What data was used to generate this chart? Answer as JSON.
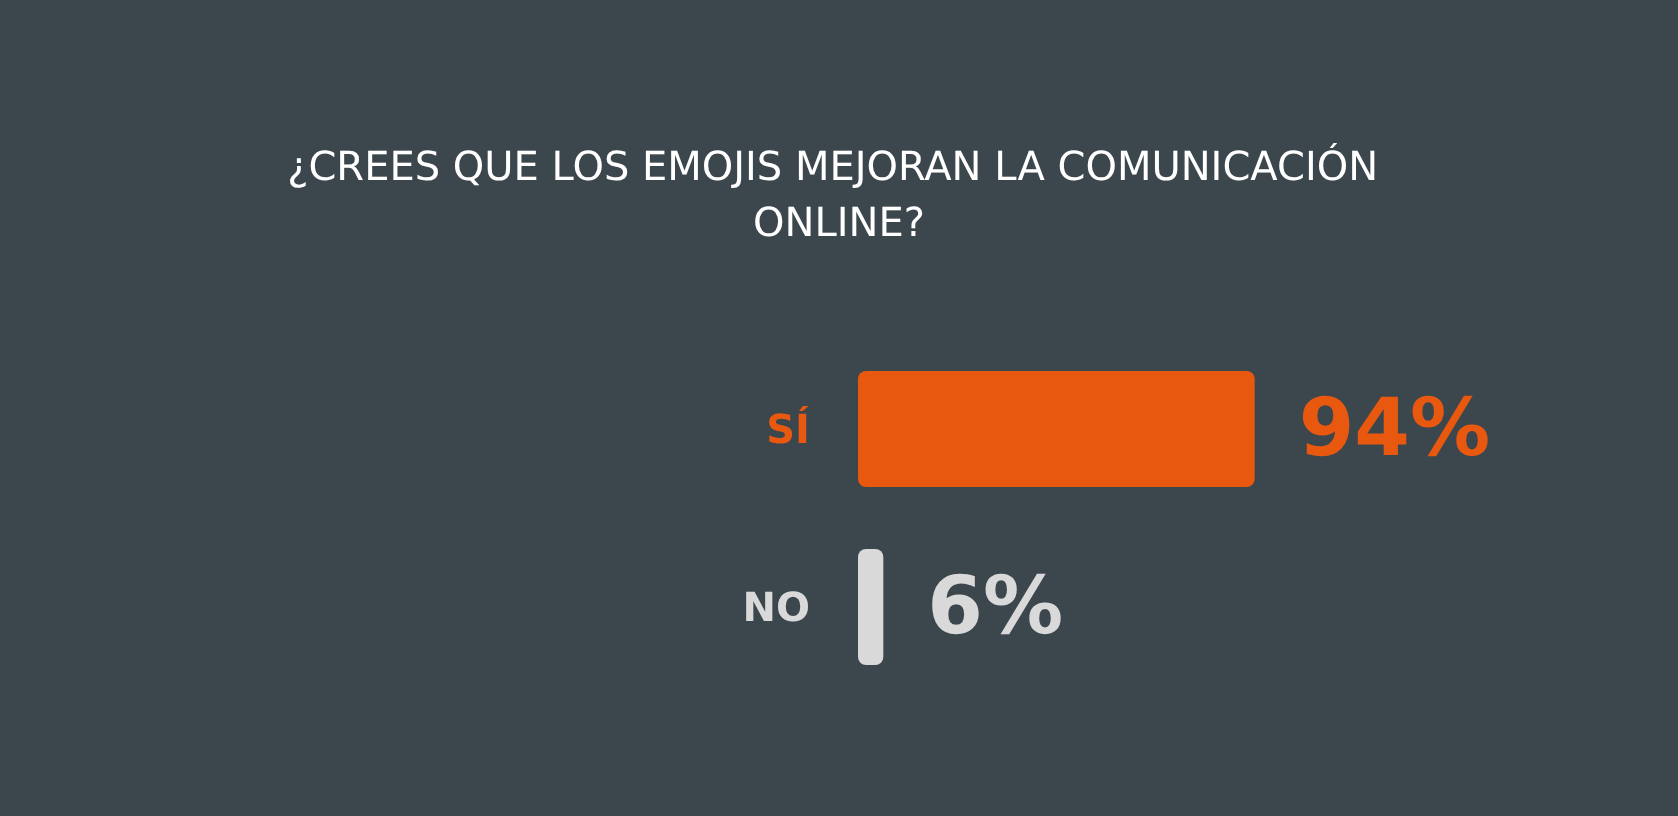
{
  "chart_data": {
    "type": "bar",
    "orientation": "horizontal",
    "title": "¿CREES QUE LOS EMOJIS MEJORAN LA COMUNICACIÓN ONLINE?",
    "categories": [
      "SÍ",
      "NO"
    ],
    "values": [
      94,
      6
    ],
    "colors": [
      "#e8580f",
      "#d9d9d9"
    ],
    "value_labels": [
      "94%",
      "6%"
    ],
    "tick_labels": "y"
  }
}
